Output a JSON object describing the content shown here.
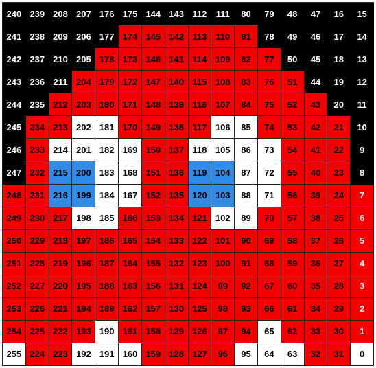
{
  "grid": {
    "rows": [
      [
        [
          240,
          "k"
        ],
        [
          239,
          "k"
        ],
        [
          208,
          "k"
        ],
        [
          207,
          "k"
        ],
        [
          176,
          "k"
        ],
        [
          175,
          "k"
        ],
        [
          144,
          "k"
        ],
        [
          143,
          "k"
        ],
        [
          112,
          "k"
        ],
        [
          111,
          "k"
        ],
        [
          80,
          "k"
        ],
        [
          79,
          "k"
        ],
        [
          48,
          "k"
        ],
        [
          47,
          "k"
        ],
        [
          16,
          "k"
        ],
        [
          15,
          "k"
        ]
      ],
      [
        [
          241,
          "k"
        ],
        [
          238,
          "k"
        ],
        [
          209,
          "k"
        ],
        [
          206,
          "k"
        ],
        [
          177,
          "k"
        ],
        [
          174,
          "r"
        ],
        [
          145,
          "r"
        ],
        [
          142,
          "r"
        ],
        [
          113,
          "r"
        ],
        [
          110,
          "r"
        ],
        [
          81,
          "r"
        ],
        [
          78,
          "k"
        ],
        [
          49,
          "k"
        ],
        [
          46,
          "k"
        ],
        [
          17,
          "k"
        ],
        [
          14,
          "k"
        ]
      ],
      [
        [
          242,
          "k"
        ],
        [
          237,
          "k"
        ],
        [
          210,
          "k"
        ],
        [
          205,
          "k"
        ],
        [
          178,
          "r"
        ],
        [
          173,
          "r"
        ],
        [
          146,
          "r"
        ],
        [
          141,
          "r"
        ],
        [
          114,
          "r"
        ],
        [
          109,
          "r"
        ],
        [
          82,
          "r"
        ],
        [
          77,
          "r"
        ],
        [
          50,
          "k"
        ],
        [
          45,
          "k"
        ],
        [
          18,
          "k"
        ],
        [
          13,
          "k"
        ]
      ],
      [
        [
          243,
          "k"
        ],
        [
          236,
          "k"
        ],
        [
          211,
          "k"
        ],
        [
          204,
          "r"
        ],
        [
          179,
          "r"
        ],
        [
          172,
          "r"
        ],
        [
          147,
          "r"
        ],
        [
          140,
          "r"
        ],
        [
          115,
          "r"
        ],
        [
          108,
          "r"
        ],
        [
          83,
          "r"
        ],
        [
          76,
          "r"
        ],
        [
          51,
          "r"
        ],
        [
          44,
          "k"
        ],
        [
          19,
          "k"
        ],
        [
          12,
          "k"
        ]
      ],
      [
        [
          244,
          "k"
        ],
        [
          235,
          "k"
        ],
        [
          212,
          "r"
        ],
        [
          203,
          "r"
        ],
        [
          180,
          "r"
        ],
        [
          171,
          "r"
        ],
        [
          148,
          "r"
        ],
        [
          139,
          "r"
        ],
        [
          116,
          "r"
        ],
        [
          107,
          "r"
        ],
        [
          84,
          "r"
        ],
        [
          75,
          "r"
        ],
        [
          52,
          "r"
        ],
        [
          43,
          "r"
        ],
        [
          20,
          "k"
        ],
        [
          11,
          "k"
        ]
      ],
      [
        [
          245,
          "k"
        ],
        [
          234,
          "r"
        ],
        [
          213,
          "r"
        ],
        [
          202,
          "w"
        ],
        [
          181,
          "w"
        ],
        [
          170,
          "r"
        ],
        [
          149,
          "r"
        ],
        [
          138,
          "r"
        ],
        [
          117,
          "r"
        ],
        [
          106,
          "w"
        ],
        [
          85,
          "w"
        ],
        [
          74,
          "r"
        ],
        [
          53,
          "r"
        ],
        [
          42,
          "r"
        ],
        [
          21,
          "r"
        ],
        [
          10,
          "k"
        ]
      ],
      [
        [
          246,
          "k"
        ],
        [
          233,
          "r"
        ],
        [
          214,
          "w"
        ],
        [
          201,
          "w"
        ],
        [
          182,
          "w"
        ],
        [
          169,
          "w"
        ],
        [
          150,
          "r"
        ],
        [
          137,
          "r"
        ],
        [
          118,
          "w"
        ],
        [
          105,
          "w"
        ],
        [
          86,
          "w"
        ],
        [
          73,
          "w"
        ],
        [
          54,
          "r"
        ],
        [
          41,
          "r"
        ],
        [
          22,
          "r"
        ],
        [
          9,
          "k"
        ]
      ],
      [
        [
          247,
          "k"
        ],
        [
          232,
          "r"
        ],
        [
          215,
          "b"
        ],
        [
          200,
          "b"
        ],
        [
          183,
          "w"
        ],
        [
          168,
          "w"
        ],
        [
          151,
          "r"
        ],
        [
          136,
          "r"
        ],
        [
          119,
          "b"
        ],
        [
          104,
          "b"
        ],
        [
          87,
          "w"
        ],
        [
          72,
          "w"
        ],
        [
          55,
          "r"
        ],
        [
          40,
          "r"
        ],
        [
          23,
          "r"
        ],
        [
          8,
          "k"
        ]
      ],
      [
        [
          248,
          "r"
        ],
        [
          231,
          "r"
        ],
        [
          216,
          "b"
        ],
        [
          199,
          "b"
        ],
        [
          184,
          "w"
        ],
        [
          167,
          "w"
        ],
        [
          152,
          "r"
        ],
        [
          135,
          "r"
        ],
        [
          120,
          "b"
        ],
        [
          103,
          "b"
        ],
        [
          88,
          "w"
        ],
        [
          71,
          "w"
        ],
        [
          56,
          "r"
        ],
        [
          39,
          "r"
        ],
        [
          24,
          "r"
        ],
        [
          7,
          "e"
        ]
      ],
      [
        [
          249,
          "r"
        ],
        [
          230,
          "r"
        ],
        [
          217,
          "r"
        ],
        [
          198,
          "w"
        ],
        [
          185,
          "w"
        ],
        [
          166,
          "r"
        ],
        [
          153,
          "r"
        ],
        [
          134,
          "r"
        ],
        [
          121,
          "r"
        ],
        [
          102,
          "w"
        ],
        [
          89,
          "w"
        ],
        [
          70,
          "r"
        ],
        [
          57,
          "r"
        ],
        [
          38,
          "r"
        ],
        [
          25,
          "r"
        ],
        [
          6,
          "e"
        ]
      ],
      [
        [
          250,
          "r"
        ],
        [
          229,
          "r"
        ],
        [
          218,
          "r"
        ],
        [
          197,
          "r"
        ],
        [
          186,
          "r"
        ],
        [
          165,
          "r"
        ],
        [
          154,
          "r"
        ],
        [
          133,
          "r"
        ],
        [
          122,
          "r"
        ],
        [
          101,
          "r"
        ],
        [
          90,
          "r"
        ],
        [
          69,
          "r"
        ],
        [
          58,
          "r"
        ],
        [
          37,
          "r"
        ],
        [
          26,
          "r"
        ],
        [
          5,
          "e"
        ]
      ],
      [
        [
          251,
          "r"
        ],
        [
          228,
          "r"
        ],
        [
          219,
          "r"
        ],
        [
          196,
          "r"
        ],
        [
          187,
          "r"
        ],
        [
          164,
          "r"
        ],
        [
          155,
          "r"
        ],
        [
          132,
          "r"
        ],
        [
          123,
          "r"
        ],
        [
          100,
          "r"
        ],
        [
          91,
          "r"
        ],
        [
          68,
          "r"
        ],
        [
          59,
          "r"
        ],
        [
          36,
          "r"
        ],
        [
          27,
          "r"
        ],
        [
          4,
          "e"
        ]
      ],
      [
        [
          252,
          "r"
        ],
        [
          227,
          "r"
        ],
        [
          220,
          "r"
        ],
        [
          195,
          "r"
        ],
        [
          188,
          "r"
        ],
        [
          163,
          "r"
        ],
        [
          156,
          "r"
        ],
        [
          131,
          "r"
        ],
        [
          124,
          "r"
        ],
        [
          99,
          "r"
        ],
        [
          92,
          "r"
        ],
        [
          67,
          "r"
        ],
        [
          60,
          "r"
        ],
        [
          35,
          "r"
        ],
        [
          28,
          "r"
        ],
        [
          3,
          "e"
        ]
      ],
      [
        [
          253,
          "r"
        ],
        [
          226,
          "r"
        ],
        [
          221,
          "r"
        ],
        [
          194,
          "r"
        ],
        [
          189,
          "r"
        ],
        [
          162,
          "r"
        ],
        [
          157,
          "r"
        ],
        [
          130,
          "r"
        ],
        [
          125,
          "r"
        ],
        [
          98,
          "r"
        ],
        [
          93,
          "r"
        ],
        [
          66,
          "r"
        ],
        [
          61,
          "r"
        ],
        [
          34,
          "r"
        ],
        [
          29,
          "r"
        ],
        [
          2,
          "e"
        ]
      ],
      [
        [
          254,
          "r"
        ],
        [
          225,
          "r"
        ],
        [
          222,
          "r"
        ],
        [
          193,
          "r"
        ],
        [
          190,
          "w"
        ],
        [
          161,
          "r"
        ],
        [
          158,
          "r"
        ],
        [
          129,
          "r"
        ],
        [
          126,
          "r"
        ],
        [
          97,
          "r"
        ],
        [
          94,
          "r"
        ],
        [
          65,
          "w"
        ],
        [
          62,
          "r"
        ],
        [
          33,
          "r"
        ],
        [
          30,
          "r"
        ],
        [
          1,
          "e"
        ]
      ],
      [
        [
          255,
          "w"
        ],
        [
          224,
          "r"
        ],
        [
          223,
          "r"
        ],
        [
          192,
          "w"
        ],
        [
          191,
          "w"
        ],
        [
          160,
          "w"
        ],
        [
          159,
          "r"
        ],
        [
          128,
          "r"
        ],
        [
          127,
          "r"
        ],
        [
          96,
          "r"
        ],
        [
          95,
          "w"
        ],
        [
          64,
          "w"
        ],
        [
          63,
          "w"
        ],
        [
          32,
          "r"
        ],
        [
          31,
          "r"
        ],
        [
          0,
          "w"
        ]
      ]
    ]
  },
  "colors": {
    "black": "#000000",
    "red": "#f40000",
    "white": "#ffffff",
    "blue": "#2e8be8"
  }
}
